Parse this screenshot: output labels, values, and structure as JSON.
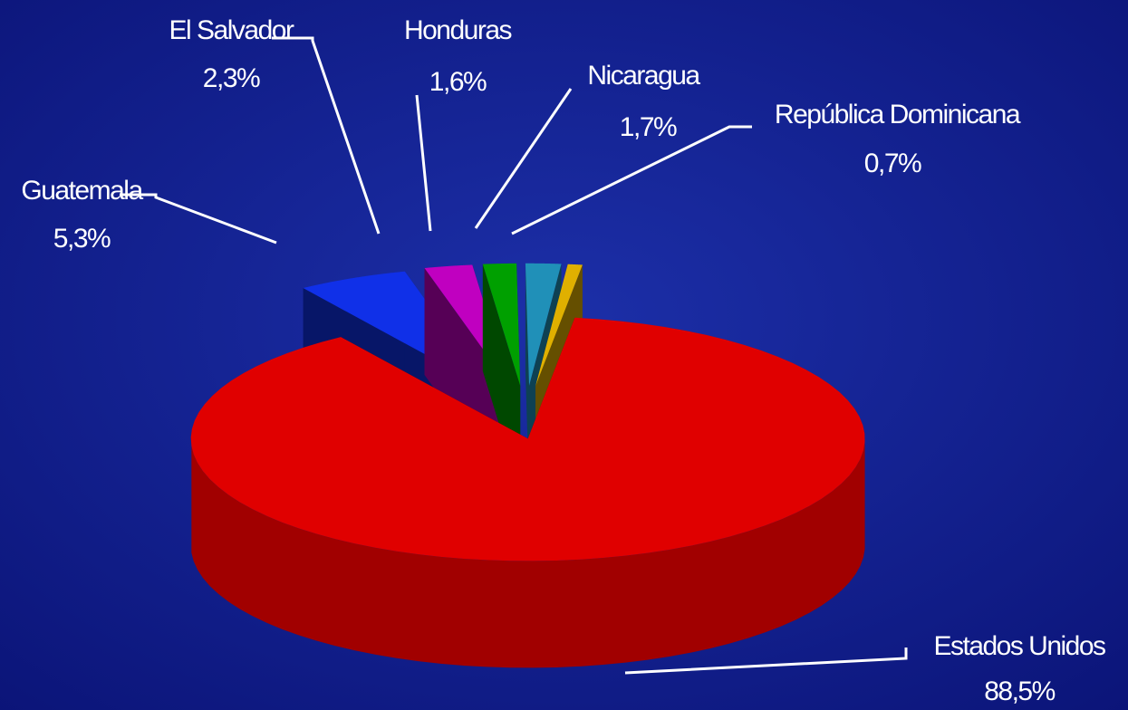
{
  "chart_data": {
    "type": "pie3d",
    "categories": [
      "Estados Unidos",
      "Guatemala",
      "El Salvador",
      "Honduras",
      "Nicaragua",
      "República Dominicana"
    ],
    "values": [
      88.5,
      5.3,
      2.3,
      1.6,
      1.7,
      0.7
    ],
    "value_labels": [
      "88,5%",
      "5,3%",
      "2,3%",
      "1,6%",
      "1,7%",
      "0,7%"
    ],
    "colors": [
      "#e00000",
      "#1030e8",
      "#c000c0",
      "#00a000",
      "#2090b8",
      "#e0b000"
    ]
  }
}
